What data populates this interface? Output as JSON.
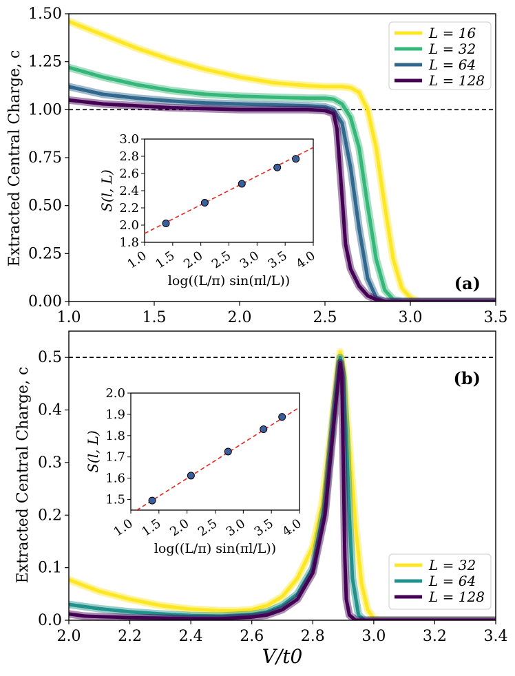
{
  "chart_data": [
    {
      "panel": "(a)",
      "type": "line",
      "ylabel": "Extracted Central Charge, c",
      "xlim": [
        1.0,
        3.5
      ],
      "ylim": [
        0.0,
        1.5
      ],
      "xticks": [
        "1.0",
        "1.5",
        "2.0",
        "2.5",
        "3.0",
        "3.5"
      ],
      "yticks": [
        "0.00",
        "0.25",
        "0.50",
        "0.75",
        "1.00",
        "1.25",
        "1.50"
      ],
      "reference_line": 1.0,
      "legend": "top-right",
      "series": [
        {
          "name": "L = 16",
          "color": "#fde725",
          "x": [
            1.0,
            1.2,
            1.4,
            1.6,
            1.8,
            2.0,
            2.2,
            2.4,
            2.5,
            2.6,
            2.65,
            2.7,
            2.75,
            2.8,
            2.85,
            2.9,
            2.95,
            3.0,
            3.05,
            3.1,
            3.5
          ],
          "y": [
            1.46,
            1.39,
            1.32,
            1.26,
            1.21,
            1.17,
            1.14,
            1.125,
            1.12,
            1.12,
            1.115,
            1.09,
            1.0,
            0.8,
            0.5,
            0.22,
            0.07,
            0.02,
            0.0,
            0.0,
            0.0
          ]
        },
        {
          "name": "L = 32",
          "color": "#35b779",
          "x": [
            1.0,
            1.2,
            1.4,
            1.6,
            1.8,
            2.0,
            2.2,
            2.4,
            2.5,
            2.55,
            2.6,
            2.65,
            2.7,
            2.75,
            2.8,
            2.85,
            2.9,
            2.95,
            3.5
          ],
          "y": [
            1.22,
            1.17,
            1.13,
            1.1,
            1.08,
            1.07,
            1.065,
            1.06,
            1.06,
            1.055,
            1.03,
            0.96,
            0.8,
            0.5,
            0.22,
            0.06,
            0.01,
            0.0,
            0.0
          ]
        },
        {
          "name": "L = 64",
          "color": "#31688e",
          "x": [
            1.0,
            1.2,
            1.4,
            1.6,
            1.8,
            2.0,
            2.2,
            2.4,
            2.5,
            2.55,
            2.6,
            2.65,
            2.7,
            2.75,
            2.8,
            2.85,
            3.5
          ],
          "y": [
            1.12,
            1.08,
            1.06,
            1.045,
            1.035,
            1.03,
            1.025,
            1.02,
            1.015,
            1.0,
            0.93,
            0.7,
            0.38,
            0.12,
            0.02,
            0.0,
            0.0
          ]
        },
        {
          "name": "L = 128",
          "color": "#440154",
          "x": [
            1.0,
            1.2,
            1.4,
            1.6,
            1.8,
            2.0,
            2.2,
            2.4,
            2.5,
            2.55,
            2.57,
            2.6,
            2.62,
            2.65,
            2.7,
            2.75,
            2.8,
            2.85,
            3.5
          ],
          "y": [
            1.05,
            1.03,
            1.02,
            1.01,
            1.005,
            1.0,
            1.0,
            1.0,
            0.995,
            0.98,
            0.9,
            0.55,
            0.3,
            0.17,
            0.08,
            0.03,
            0.01,
            0.0,
            0.0
          ]
        }
      ],
      "inset": {
        "type": "scatter",
        "xlabel": "log((L/π) sin(πl/L))",
        "ylabel": "S(l, L)",
        "xlim": [
          1.0,
          4.0
        ],
        "ylim": [
          1.8,
          3.0
        ],
        "xticks": [
          "1.0",
          "1.5",
          "2.0",
          "2.5",
          "3.0",
          "3.5",
          "4.0"
        ],
        "yticks": [
          "1.8",
          "2.0",
          "2.2",
          "2.4",
          "2.6",
          "2.8",
          "3.0"
        ],
        "points_x": [
          1.38,
          2.07,
          2.73,
          3.36,
          3.69
        ],
        "points_y": [
          2.02,
          2.26,
          2.48,
          2.67,
          2.77
        ],
        "fit": {
          "slope": 0.333,
          "intercept": 1.57
        }
      }
    },
    {
      "panel": "(b)",
      "type": "line",
      "xlabel": "V/t0",
      "ylabel": "Extracted Central Charge, c",
      "xlim": [
        2.0,
        3.4
      ],
      "ylim": [
        0.0,
        0.55
      ],
      "xticks": [
        "2.0",
        "2.2",
        "2.4",
        "2.6",
        "2.8",
        "3.0",
        "3.2",
        "3.4"
      ],
      "yticks": [
        "0.0",
        "0.1",
        "0.2",
        "0.3",
        "0.4",
        "0.5"
      ],
      "reference_line": 0.5,
      "legend": "bottom-right",
      "series": [
        {
          "name": "L = 32",
          "color": "#fde725",
          "x": [
            2.0,
            2.1,
            2.2,
            2.3,
            2.4,
            2.5,
            2.55,
            2.6,
            2.65,
            2.7,
            2.75,
            2.8,
            2.83,
            2.86,
            2.88,
            2.89,
            2.9,
            2.92,
            2.94,
            2.96,
            2.98,
            3.0,
            3.02,
            3.4
          ],
          "y": [
            0.077,
            0.055,
            0.04,
            0.028,
            0.021,
            0.018,
            0.018,
            0.02,
            0.028,
            0.045,
            0.08,
            0.14,
            0.22,
            0.36,
            0.47,
            0.51,
            0.48,
            0.33,
            0.18,
            0.07,
            0.02,
            0.003,
            0.0,
            0.0
          ]
        },
        {
          "name": "L = 64",
          "color": "#21918c",
          "x": [
            2.0,
            2.1,
            2.2,
            2.3,
            2.4,
            2.5,
            2.6,
            2.65,
            2.7,
            2.75,
            2.8,
            2.84,
            2.87,
            2.89,
            2.9,
            2.91,
            2.92,
            2.93,
            2.95,
            2.97,
            3.4
          ],
          "y": [
            0.03,
            0.022,
            0.016,
            0.012,
            0.009,
            0.008,
            0.011,
            0.016,
            0.028,
            0.05,
            0.1,
            0.22,
            0.4,
            0.5,
            0.46,
            0.35,
            0.2,
            0.08,
            0.01,
            0.0,
            0.0
          ]
        },
        {
          "name": "L = 128",
          "color": "#440154",
          "x": [
            2.0,
            2.05,
            2.1,
            2.15,
            2.2,
            2.3,
            2.4,
            2.5,
            2.6,
            2.65,
            2.7,
            2.75,
            2.8,
            2.84,
            2.87,
            2.89,
            2.895,
            2.9,
            2.905,
            2.91,
            2.92,
            2.94,
            3.4
          ],
          "y": [
            0.012,
            0.008,
            0.007,
            0.006,
            0.005,
            0.004,
            0.003,
            0.003,
            0.006,
            0.01,
            0.02,
            0.04,
            0.09,
            0.2,
            0.38,
            0.49,
            0.47,
            0.3,
            0.12,
            0.04,
            0.01,
            0.0,
            0.0
          ]
        }
      ],
      "inset": {
        "type": "scatter",
        "xlabel": "log((L/π) sin(πl/L))",
        "ylabel": "S(l, L)",
        "xlim": [
          1.0,
          4.0
        ],
        "ylim": [
          1.45,
          2.0
        ],
        "xticks": [
          "1.0",
          "1.5",
          "2.0",
          "2.5",
          "3.0",
          "3.5",
          "4.0"
        ],
        "yticks": [
          "1.5",
          "1.6",
          "1.7",
          "1.8",
          "1.9",
          "2.0"
        ],
        "points_x": [
          1.38,
          2.07,
          2.73,
          3.36,
          3.69
        ],
        "points_y": [
          1.495,
          1.612,
          1.725,
          1.83,
          1.888
        ],
        "fit": {
          "slope": 0.167,
          "intercept": 1.265
        }
      }
    }
  ]
}
